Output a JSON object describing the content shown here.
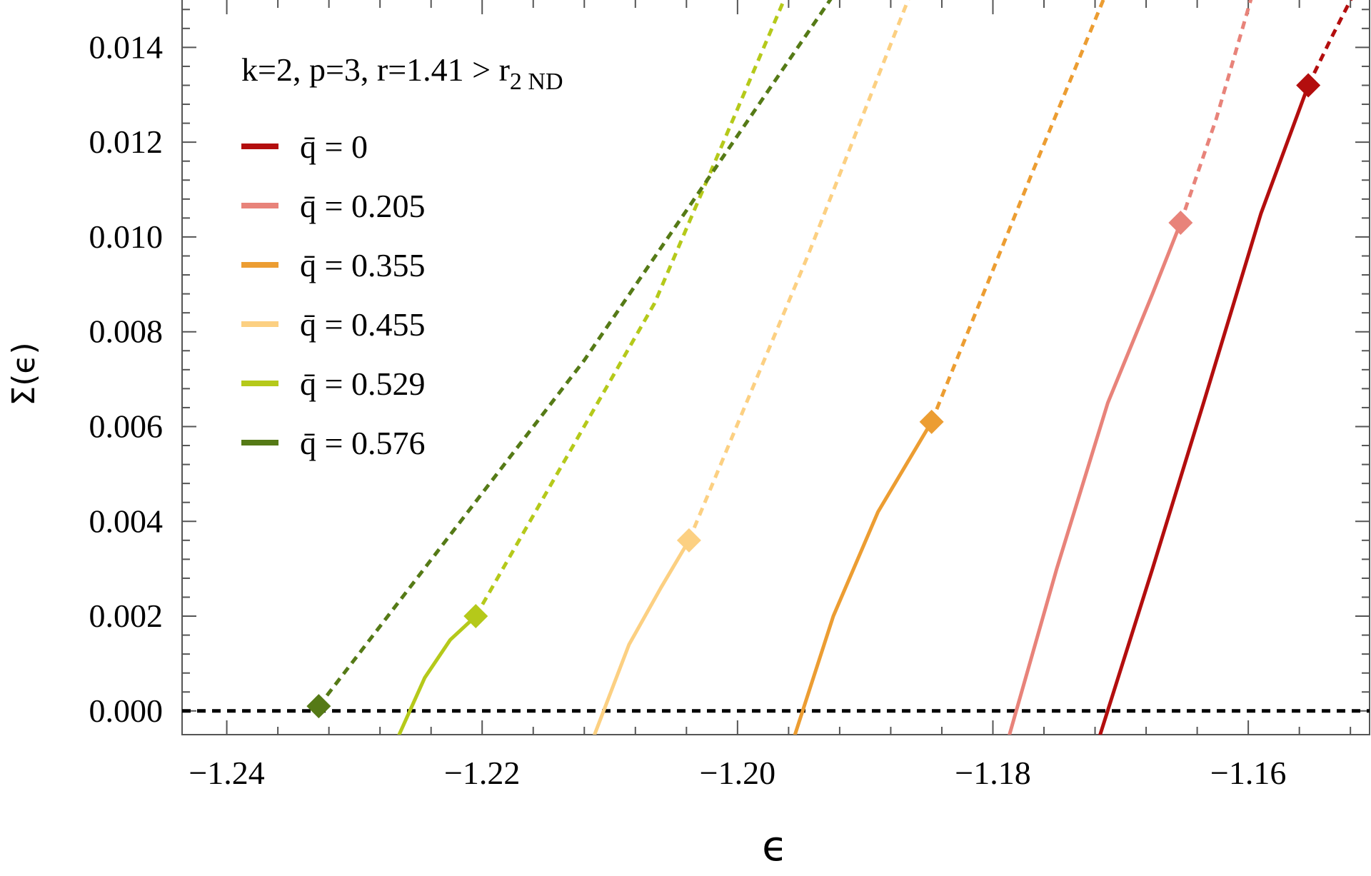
{
  "chart_data": {
    "type": "line",
    "annotation": "k=2, p=3, r=1.41 > r",
    "annotation_subscript": "2 ND",
    "xlabel": "ϵ",
    "ylabel": "Σ(ϵ)",
    "xlim": [
      -1.2435,
      -1.1505
    ],
    "ylim": [
      -0.0005,
      0.015
    ],
    "x_ticks": [
      -1.24,
      -1.22,
      -1.2,
      -1.18,
      -1.16
    ],
    "x_tick_labels": [
      "−1.24",
      "−1.22",
      "−1.20",
      "−1.18",
      "−1.16"
    ],
    "y_ticks": [
      0.0,
      0.002,
      0.004,
      0.006,
      0.008,
      0.01,
      0.012,
      0.014
    ],
    "y_tick_labels": [
      "0.000",
      "0.002",
      "0.004",
      "0.006",
      "0.008",
      "0.010",
      "0.012",
      "0.014"
    ],
    "grid": false,
    "legend_position": "top-left",
    "zero_line": {
      "y": 0,
      "style": "dashed",
      "color": "#000000"
    },
    "series": [
      {
        "name": "q̄ = 0",
        "color": "#b30e0e",
        "solid": [
          [
            -1.1716,
            -0.0005
          ],
          [
            -1.1675,
            0.003
          ],
          [
            -1.1635,
            0.0065
          ],
          [
            -1.159,
            0.0105
          ],
          [
            -1.1553,
            0.0132
          ]
        ],
        "marker": [
          -1.1553,
          0.0132
        ],
        "dashed": [
          [
            -1.1553,
            0.0132
          ],
          [
            -1.1535,
            0.0142
          ],
          [
            -1.1518,
            0.0151
          ]
        ]
      },
      {
        "name": "q̄ = 0.205",
        "color": "#e8837a",
        "solid": [
          [
            -1.1787,
            -0.0005
          ],
          [
            -1.175,
            0.003
          ],
          [
            -1.171,
            0.0065
          ],
          [
            -1.1675,
            0.0088
          ],
          [
            -1.1653,
            0.0103
          ]
        ],
        "marker": [
          -1.1653,
          0.0103
        ],
        "dashed": [
          [
            -1.1653,
            0.0103
          ],
          [
            -1.1625,
            0.0125
          ],
          [
            -1.1597,
            0.0151
          ]
        ]
      },
      {
        "name": "q̄ = 0.355",
        "color": "#ec9d32",
        "solid": [
          [
            -1.1955,
            -0.0005
          ],
          [
            -1.1925,
            0.002
          ],
          [
            -1.189,
            0.0042
          ],
          [
            -1.1848,
            0.0061
          ]
        ],
        "marker": [
          -1.1848,
          0.0061
        ],
        "dashed": [
          [
            -1.1848,
            0.0061
          ],
          [
            -1.177,
            0.0113
          ],
          [
            -1.1712,
            0.0151
          ]
        ]
      },
      {
        "name": "q̄ = 0.455",
        "color": "#fcd082",
        "solid": [
          [
            -1.2112,
            -0.0005
          ],
          [
            -1.2085,
            0.0014
          ],
          [
            -1.206,
            0.0026
          ],
          [
            -1.2038,
            0.0036
          ]
        ],
        "marker": [
          -1.2038,
          0.0036
        ],
        "dashed": [
          [
            -1.2038,
            0.0036
          ],
          [
            -1.1945,
            0.0096
          ],
          [
            -1.1865,
            0.0151
          ]
        ]
      },
      {
        "name": "q̄ = 0.529",
        "color": "#b5c91a",
        "solid": [
          [
            -1.2265,
            -0.0005
          ],
          [
            -1.2245,
            0.0007
          ],
          [
            -1.2225,
            0.0015
          ],
          [
            -1.2205,
            0.002
          ]
        ],
        "marker": [
          -1.2205,
          0.002
        ],
        "dashed": [
          [
            -1.2205,
            0.002
          ],
          [
            -1.2065,
            0.0086
          ],
          [
            -1.1962,
            0.0151
          ]
        ]
      },
      {
        "name": "q̄ = 0.576",
        "color": "#557a16",
        "solid": [],
        "marker": [
          -1.2328,
          0.0001
        ],
        "dashed": [
          [
            -1.2328,
            0.0001
          ],
          [
            -1.212,
            0.0074
          ],
          [
            -1.1925,
            0.0151
          ]
        ]
      }
    ]
  }
}
